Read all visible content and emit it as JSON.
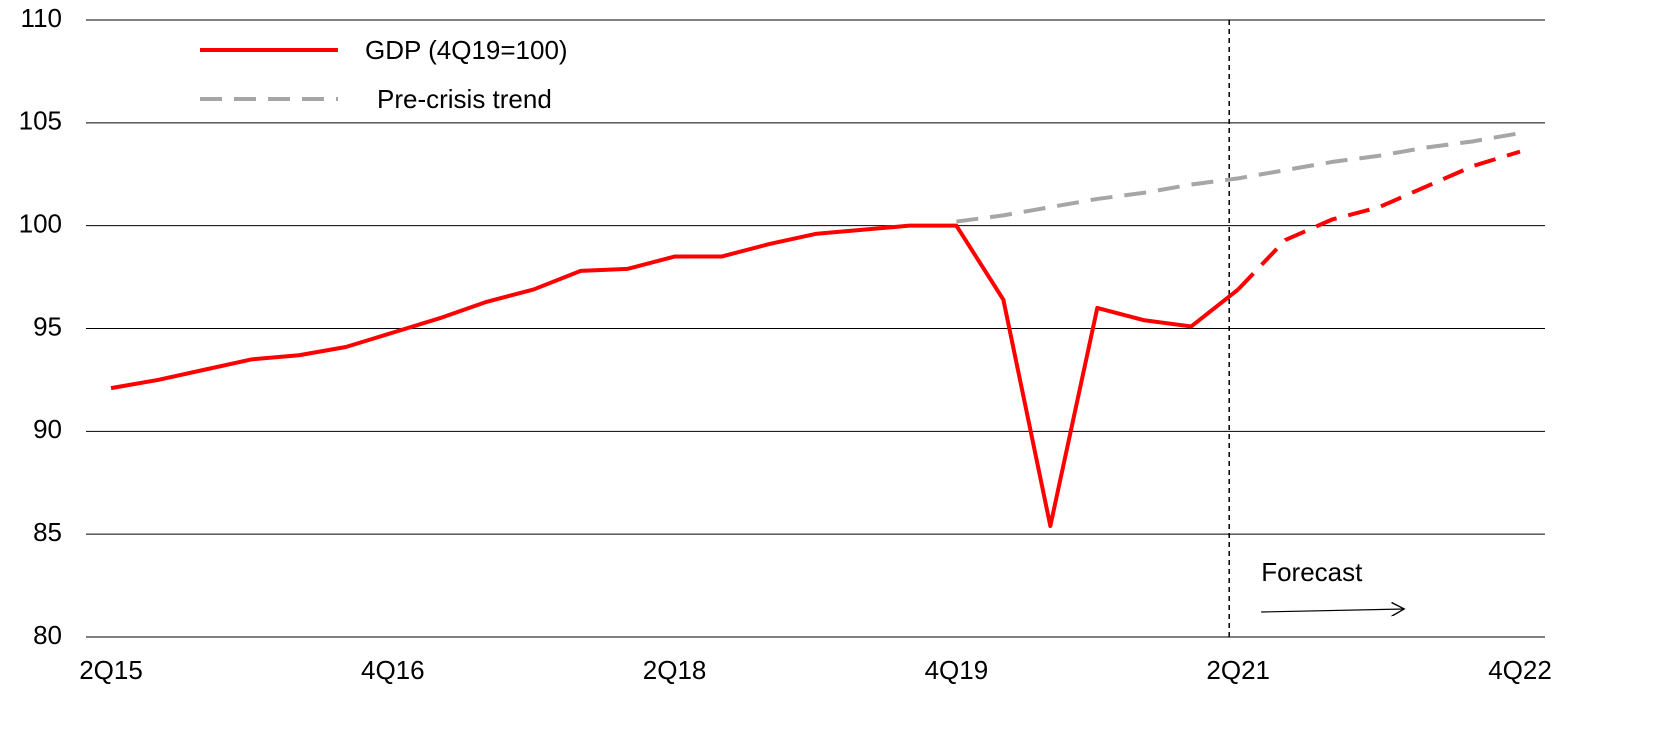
{
  "chart_data": {
    "type": "line",
    "categories": [
      "2Q15",
      null,
      null,
      null,
      null,
      null,
      "4Q16",
      null,
      null,
      null,
      null,
      null,
      "2Q18",
      null,
      null,
      null,
      null,
      null,
      "4Q19",
      null,
      null,
      null,
      null,
      null,
      "2Q21",
      null,
      null,
      null,
      null,
      null,
      "4Q22"
    ],
    "series": [
      {
        "name": "GDP (4Q19=100)",
        "color": "#ff0000",
        "dashed": false,
        "values": [
          92.1,
          92.5,
          93.0,
          93.5,
          93.7,
          94.1,
          94.8,
          95.5,
          96.3,
          96.9,
          97.8,
          97.9,
          98.5,
          98.5,
          99.1,
          99.6,
          99.8,
          100,
          100,
          96.4,
          85.4,
          96.0,
          95.4,
          95.1,
          96.9,
          null,
          null,
          null,
          null,
          null,
          null
        ]
      },
      {
        "name": "Pre-crisis trend",
        "color": "#a6a6a6",
        "dashed": true,
        "values": [
          null,
          null,
          null,
          null,
          null,
          null,
          null,
          null,
          null,
          null,
          null,
          null,
          null,
          null,
          null,
          null,
          null,
          null,
          100.2,
          100.5,
          100.9,
          101.3,
          101.6,
          102.0,
          102.3,
          102.7,
          103.1,
          103.4,
          103.8,
          104.1,
          104.5
        ]
      }
    ],
    "forecast": {
      "color": "#ff0000",
      "dashed": true,
      "values": [
        null,
        null,
        null,
        null,
        null,
        null,
        null,
        null,
        null,
        null,
        null,
        null,
        null,
        null,
        null,
        null,
        null,
        null,
        null,
        null,
        null,
        null,
        null,
        null,
        96.9,
        99.3,
        100.3,
        100.9,
        101.9,
        102.9,
        103.6
      ]
    },
    "annotation": "Forecast",
    "ylim": [
      80,
      110
    ],
    "yticks": [
      80,
      85,
      90,
      95,
      100,
      105,
      110
    ],
    "grid": true
  }
}
